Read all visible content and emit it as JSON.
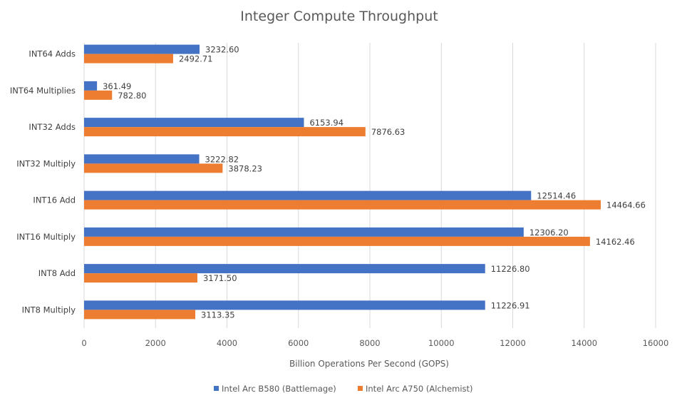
{
  "chart_data": {
    "type": "bar",
    "orientation": "horizontal",
    "title": "Integer Compute Throughput",
    "xlabel": "Billion Operations Per Second (GOPS)",
    "ylabel": "",
    "xlim": [
      0,
      16000
    ],
    "x_ticks": [
      0,
      2000,
      4000,
      6000,
      8000,
      10000,
      12000,
      14000,
      16000
    ],
    "categories": [
      "INT64 Adds",
      "INT64 Multiplies",
      "INT32 Adds",
      "INT32 Multiply",
      "INT16 Add",
      "INT16 Multiply",
      "INT8 Add",
      "INT8 Multiply"
    ],
    "series": [
      {
        "name": "Intel Arc B580 (Battlemage)",
        "color": "#4472c4",
        "values": [
          3232.6,
          361.49,
          6153.94,
          3222.82,
          12514.46,
          12306.2,
          11226.8,
          11226.91
        ],
        "labels": [
          "3232.60",
          "361.49",
          "6153.94",
          "3222.82",
          "12514.46",
          "12306.20",
          "11226.80",
          "11226.91"
        ]
      },
      {
        "name": "Intel Arc A750 (Alchemist)",
        "color": "#ed7d31",
        "values": [
          2492.71,
          782.8,
          7876.63,
          3878.23,
          14464.66,
          14162.46,
          3171.5,
          3113.35
        ],
        "labels": [
          "2492.71",
          "782.80",
          "7876.63",
          "3878.23",
          "14464.66",
          "14162.46",
          "3171.50",
          "3113.35"
        ]
      }
    ],
    "grid": true,
    "legend_position": "bottom"
  }
}
